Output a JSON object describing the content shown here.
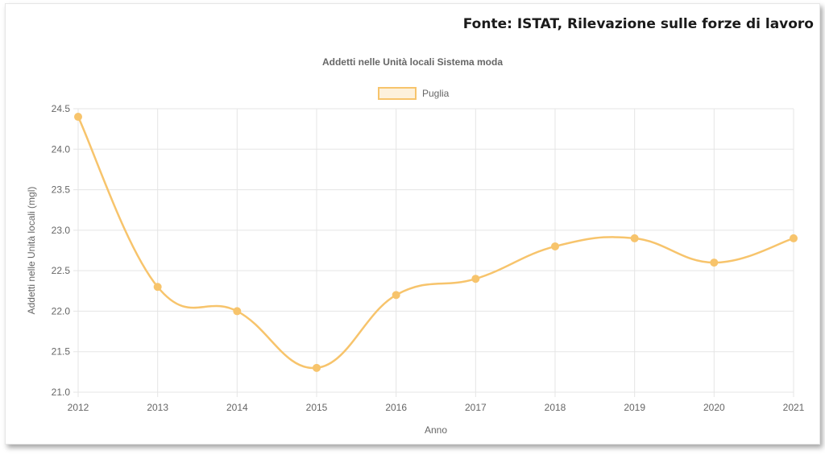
{
  "source_label": "Fonte: ISTAT, Rilevazione sulle forze di lavoro",
  "chart_data": {
    "type": "line",
    "title": "Addetti nelle Unità locali Sistema moda",
    "xlabel": "Anno",
    "ylabel": "Addetti nelle Unità locali (mgl)",
    "categories": [
      "2012",
      "2013",
      "2014",
      "2015",
      "2016",
      "2017",
      "2018",
      "2019",
      "2020",
      "2021"
    ],
    "series": [
      {
        "name": "Puglia",
        "color": "#f7c46c",
        "values": [
          24.4,
          22.3,
          22.0,
          21.3,
          22.2,
          22.4,
          22.8,
          22.9,
          22.6,
          22.9
        ]
      }
    ],
    "ylim": [
      21.0,
      24.5
    ],
    "yticks": [
      "21.0",
      "21.5",
      "22.0",
      "22.5",
      "23.0",
      "23.5",
      "24.0",
      "24.5"
    ],
    "grid": true,
    "legend_position": "top"
  }
}
